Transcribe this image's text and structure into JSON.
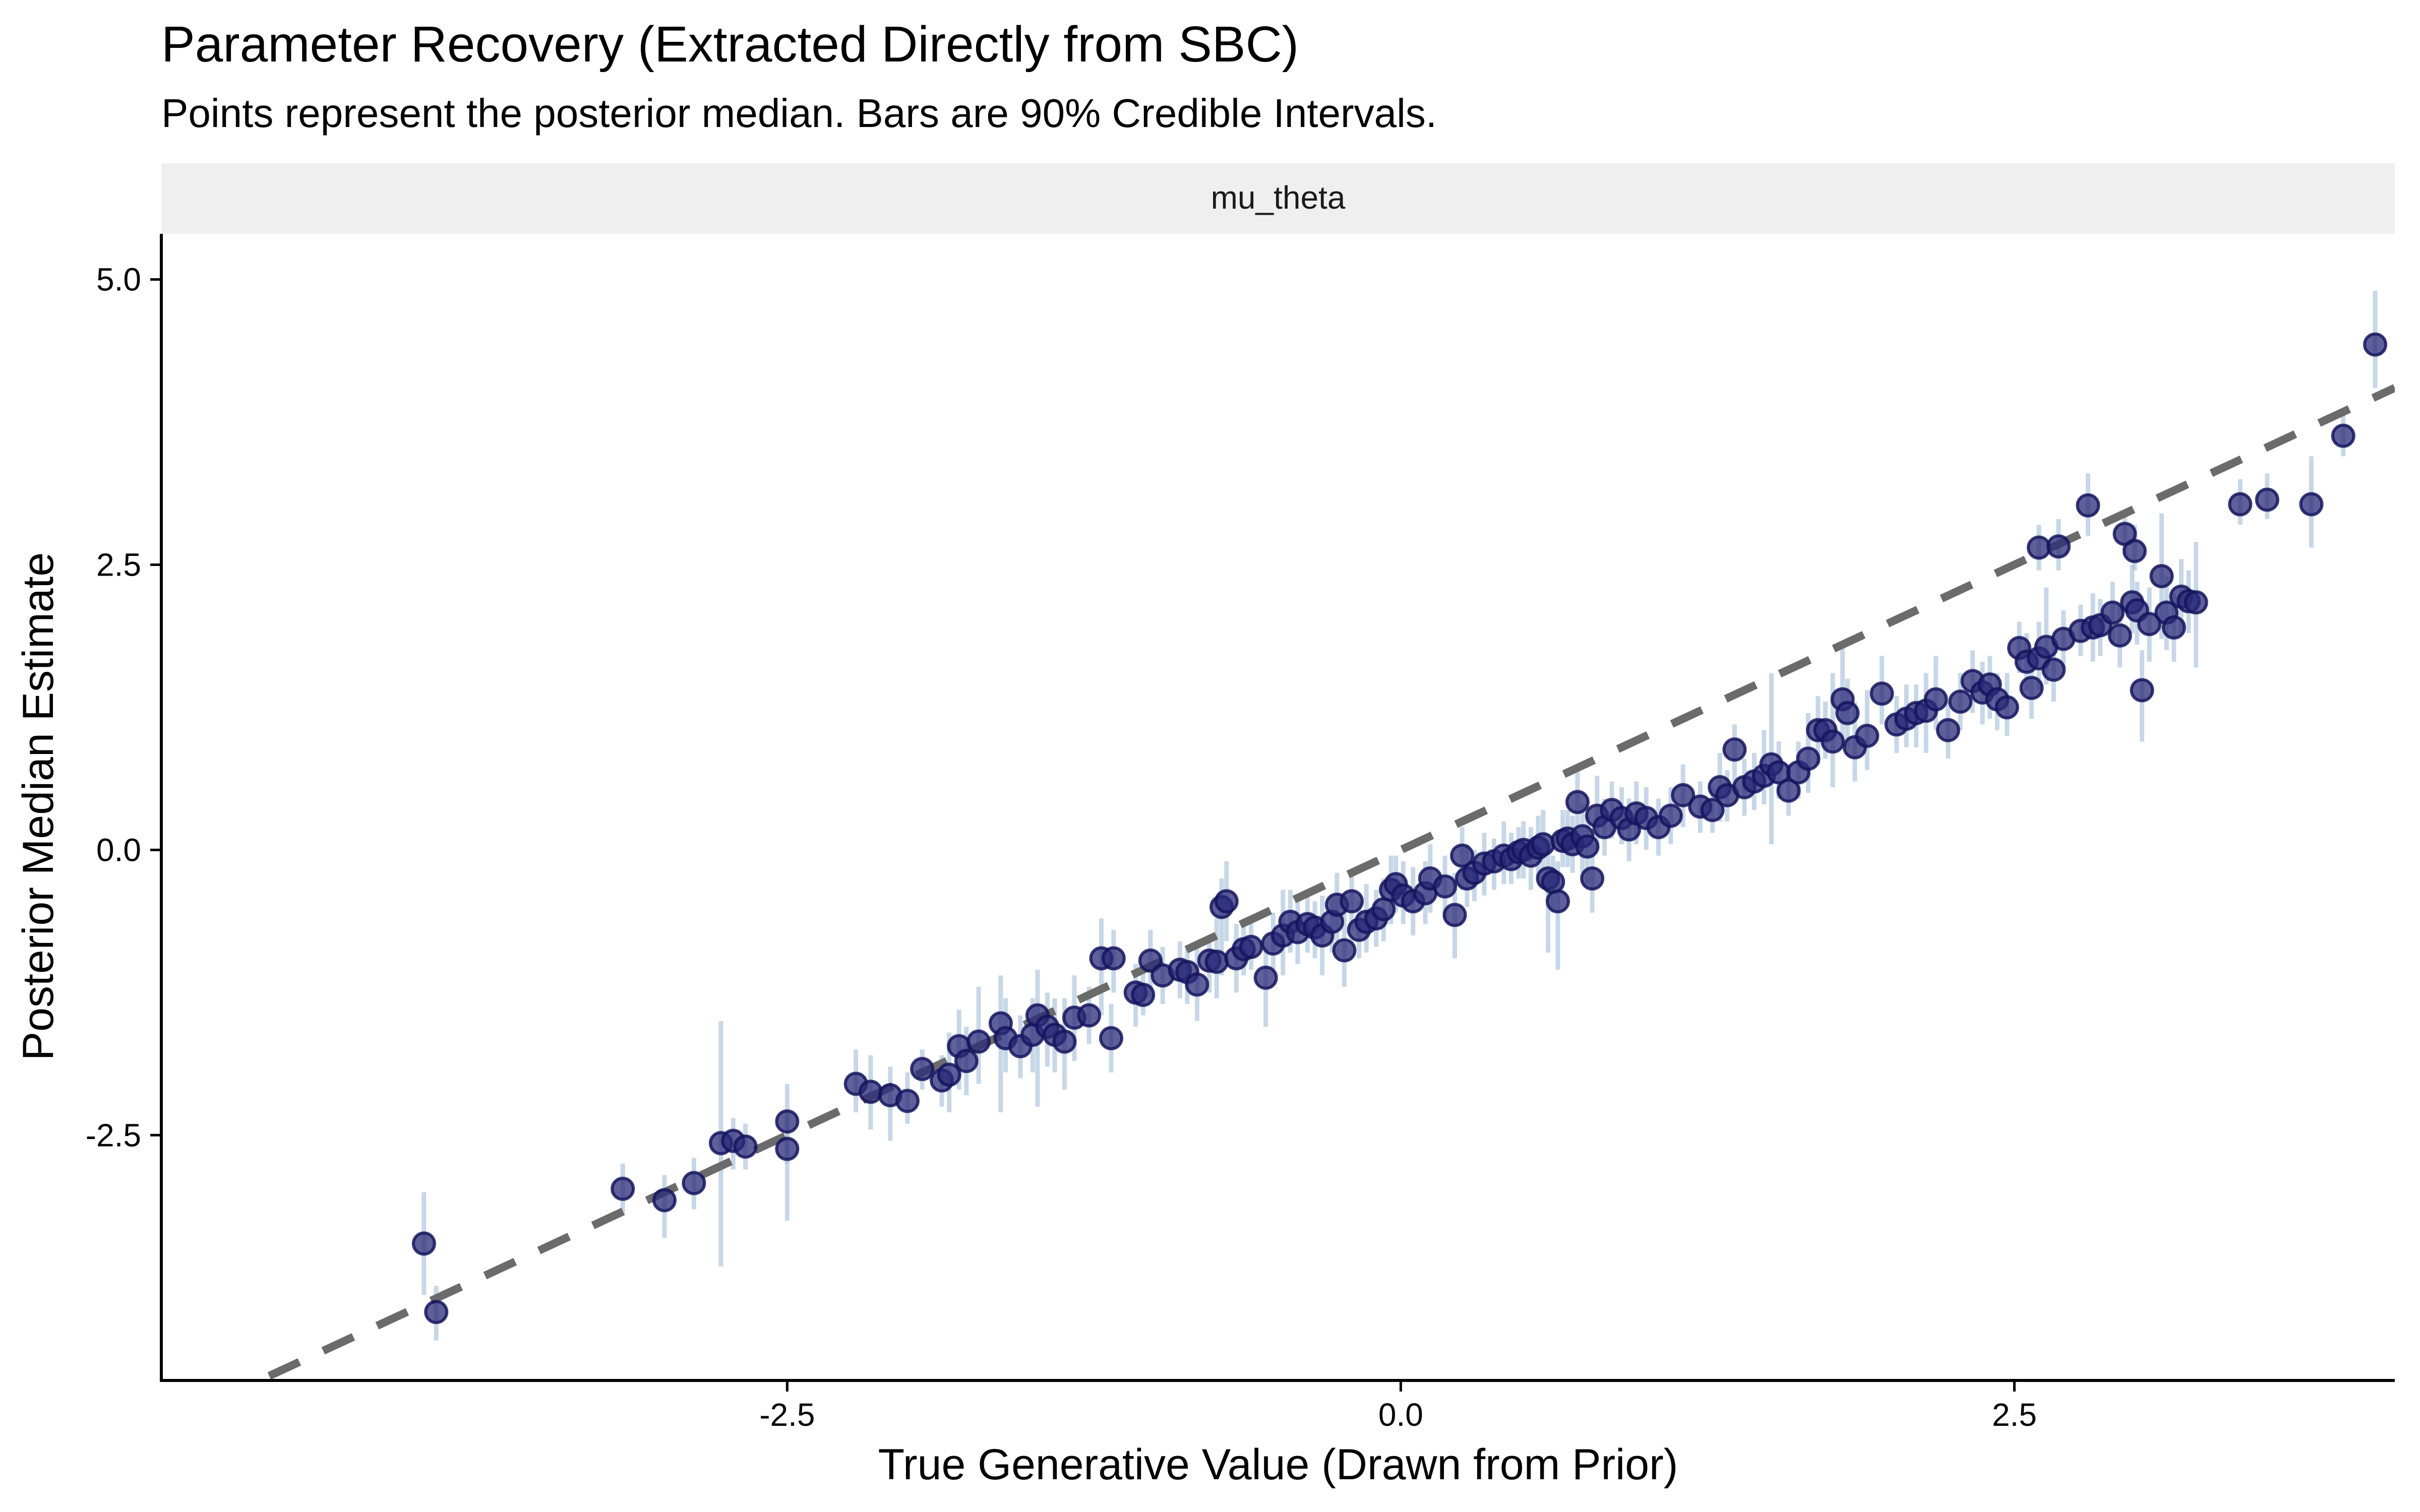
{
  "chart_data": {
    "type": "scatter",
    "title": "Parameter Recovery (Extracted Directly from SBC)",
    "subtitle": "Points represent the posterior median. Bars are 90% Credible Intervals.",
    "facet_label": "mu_theta",
    "xlabel": "True Generative Value (Drawn from Prior)",
    "ylabel": "Posterior Median Estimate",
    "xlim": [
      -5.05,
      4.05
    ],
    "ylim": [
      -4.65,
      5.4
    ],
    "x_ticks": [
      -2.5,
      0.0,
      2.5
    ],
    "x_tick_labels": [
      "-2.5",
      "0.0",
      "2.5"
    ],
    "y_ticks": [
      -2.5,
      0.0,
      2.5,
      5.0
    ],
    "y_tick_labels": [
      "-2.5",
      "0.0",
      "2.5",
      "5.0"
    ],
    "grid": false,
    "reference_line": {
      "type": "identity",
      "slope": 1,
      "intercept": 0,
      "style": "dashed"
    },
    "colors": {
      "point_fill": "#2a2a78",
      "point_stroke": "#15155e",
      "interval": "#a9c2da",
      "reference_line": "#6b6b6b",
      "strip_bg": "#efefef"
    },
    "series": [
      {
        "name": "mu_theta",
        "points": [
          [
            -3.98,
            -3.45,
            -3.0,
            -3.9
          ],
          [
            -3.93,
            -4.05,
            -3.82,
            -4.3
          ],
          [
            -3.17,
            -2.97,
            -2.75,
            -3.2
          ],
          [
            -3.0,
            -3.07,
            -2.85,
            -3.4
          ],
          [
            -2.88,
            -2.92,
            -2.7,
            -3.15
          ],
          [
            -2.77,
            -2.57,
            -1.5,
            -3.65
          ],
          [
            -2.72,
            -2.55,
            -2.35,
            -2.8
          ],
          [
            -2.67,
            -2.6,
            -2.4,
            -2.8
          ],
          [
            -2.5,
            -2.38,
            -2.05,
            -2.75
          ],
          [
            -2.5,
            -2.62,
            -2.3,
            -3.25
          ],
          [
            -2.22,
            -2.05,
            -1.75,
            -2.3
          ],
          [
            -2.16,
            -2.12,
            -1.8,
            -2.45
          ],
          [
            -2.08,
            -2.15,
            -1.9,
            -2.55
          ],
          [
            -2.01,
            -2.2,
            -1.95,
            -2.4
          ],
          [
            -1.95,
            -1.92,
            -1.75,
            -2.1
          ],
          [
            -1.87,
            -2.02,
            -1.8,
            -2.25
          ],
          [
            -1.84,
            -1.97,
            -1.6,
            -2.3
          ],
          [
            -1.8,
            -1.72,
            -1.4,
            -2.1
          ],
          [
            -1.77,
            -1.85,
            -1.55,
            -2.15
          ],
          [
            -1.72,
            -1.68,
            -1.2,
            -2.05
          ],
          [
            -1.63,
            -1.52,
            -1.1,
            -2.3
          ],
          [
            -1.61,
            -1.65,
            -1.3,
            -1.95
          ],
          [
            -1.55,
            -1.72,
            -1.45,
            -2.0
          ],
          [
            -1.5,
            -1.62,
            -1.3,
            -1.95
          ],
          [
            -1.48,
            -1.45,
            -1.05,
            -2.25
          ],
          [
            -1.44,
            -1.55,
            -1.25,
            -1.9
          ],
          [
            -1.41,
            -1.62,
            -1.3,
            -1.95
          ],
          [
            -1.37,
            -1.68,
            -1.3,
            -2.1
          ],
          [
            -1.33,
            -1.47,
            -1.1,
            -1.85
          ],
          [
            -1.27,
            -1.45,
            -1.2,
            -1.7
          ],
          [
            -1.22,
            -0.95,
            -0.6,
            -1.45
          ],
          [
            -1.18,
            -1.65,
            -1.35,
            -1.95
          ],
          [
            -1.17,
            -0.95,
            -0.7,
            -1.25
          ],
          [
            -1.08,
            -1.25,
            -1.0,
            -1.55
          ],
          [
            -1.05,
            -1.27,
            -1.05,
            -1.45
          ],
          [
            -1.02,
            -0.97,
            -0.7,
            -1.3
          ],
          [
            -0.97,
            -1.1,
            -0.85,
            -1.35
          ],
          [
            -0.9,
            -1.05,
            -0.8,
            -1.3
          ],
          [
            -0.87,
            -1.07,
            -0.85,
            -1.35
          ],
          [
            -0.83,
            -1.18,
            -0.85,
            -1.5
          ],
          [
            -0.78,
            -0.97,
            -0.75,
            -1.25
          ],
          [
            -0.75,
            -0.98,
            -0.6,
            -1.3
          ],
          [
            -0.73,
            -0.5,
            -0.25,
            -1.1
          ],
          [
            -0.71,
            -0.45,
            -0.1,
            -0.8
          ],
          [
            -0.67,
            -0.95,
            -0.65,
            -1.25
          ],
          [
            -0.64,
            -0.87,
            -0.65,
            -1.1
          ],
          [
            -0.61,
            -0.85,
            -0.6,
            -1.05
          ],
          [
            -0.55,
            -1.12,
            -0.85,
            -1.55
          ],
          [
            -0.52,
            -0.82,
            -0.55,
            -1.05
          ],
          [
            -0.48,
            -0.75,
            -0.35,
            -1.1
          ],
          [
            -0.45,
            -0.63,
            -0.35,
            -0.9
          ],
          [
            -0.42,
            -0.72,
            -0.45,
            -1.0
          ],
          [
            -0.38,
            -0.65,
            -0.4,
            -0.9
          ],
          [
            -0.35,
            -0.68,
            -0.45,
            -0.95
          ],
          [
            -0.32,
            -0.75,
            -0.4,
            -1.1
          ],
          [
            -0.28,
            -0.63,
            -0.4,
            -0.9
          ],
          [
            -0.26,
            -0.48,
            -0.2,
            -0.8
          ],
          [
            -0.23,
            -0.88,
            -0.55,
            -1.2
          ],
          [
            -0.2,
            -0.45,
            -0.2,
            -0.7
          ],
          [
            -0.17,
            -0.7,
            -0.45,
            -0.95
          ],
          [
            -0.14,
            -0.63,
            -0.3,
            -0.9
          ],
          [
            -0.1,
            -0.6,
            -0.35,
            -0.85
          ],
          [
            -0.07,
            -0.52,
            -0.25,
            -0.8
          ],
          [
            -0.04,
            -0.35,
            -0.05,
            -0.65
          ],
          [
            -0.02,
            -0.3,
            -0.05,
            -0.55
          ],
          [
            0.01,
            -0.4,
            -0.1,
            -0.65
          ],
          [
            0.05,
            -0.45,
            -0.15,
            -0.75
          ],
          [
            0.1,
            -0.38,
            -0.1,
            -0.65
          ],
          [
            0.12,
            -0.25,
            0.05,
            -0.55
          ],
          [
            0.18,
            -0.32,
            -0.05,
            -0.6
          ],
          [
            0.22,
            -0.57,
            -0.2,
            -0.95
          ],
          [
            0.25,
            -0.05,
            0.2,
            -0.35
          ],
          [
            0.27,
            -0.25,
            0.05,
            -0.5
          ],
          [
            0.3,
            -0.2,
            0.0,
            -0.45
          ],
          [
            0.34,
            -0.12,
            0.15,
            -0.4
          ],
          [
            0.38,
            -0.1,
            0.1,
            -0.35
          ],
          [
            0.42,
            -0.05,
            0.25,
            -0.3
          ],
          [
            0.45,
            -0.08,
            0.15,
            -0.3
          ],
          [
            0.48,
            -0.02,
            0.2,
            -0.25
          ],
          [
            0.5,
            0.0,
            0.25,
            -0.25
          ],
          [
            0.53,
            -0.05,
            0.2,
            -0.35
          ],
          [
            0.56,
            0.02,
            0.3,
            -0.25
          ],
          [
            0.58,
            0.05,
            0.35,
            -0.2
          ],
          [
            0.6,
            -0.25,
            0.05,
            -0.9
          ],
          [
            0.62,
            -0.28,
            -0.05,
            -0.55
          ],
          [
            0.64,
            -0.45,
            -0.1,
            -1.05
          ],
          [
            0.66,
            0.08,
            0.35,
            -0.15
          ],
          [
            0.68,
            0.1,
            0.35,
            -0.15
          ],
          [
            0.7,
            0.05,
            0.3,
            -0.2
          ],
          [
            0.72,
            0.42,
            0.7,
            0.1
          ],
          [
            0.74,
            0.12,
            0.4,
            -0.2
          ],
          [
            0.76,
            0.03,
            0.3,
            -0.3
          ],
          [
            0.78,
            -0.25,
            0.05,
            -0.55
          ],
          [
            0.8,
            0.3,
            0.65,
            0.0
          ],
          [
            0.83,
            0.2,
            0.45,
            -0.05
          ],
          [
            0.86,
            0.35,
            0.6,
            0.1
          ],
          [
            0.9,
            0.28,
            0.55,
            0.05
          ],
          [
            0.93,
            0.18,
            0.45,
            -0.1
          ],
          [
            0.96,
            0.32,
            0.6,
            0.05
          ],
          [
            1.0,
            0.28,
            0.55,
            0.0
          ],
          [
            1.05,
            0.2,
            0.45,
            -0.05
          ],
          [
            1.1,
            0.3,
            0.55,
            0.05
          ],
          [
            1.15,
            0.48,
            0.75,
            0.2
          ],
          [
            1.22,
            0.38,
            0.6,
            0.15
          ],
          [
            1.27,
            0.35,
            0.55,
            0.15
          ],
          [
            1.3,
            0.55,
            0.85,
            0.25
          ],
          [
            1.33,
            0.48,
            0.7,
            0.25
          ],
          [
            1.36,
            0.88,
            1.1,
            0.55
          ],
          [
            1.4,
            0.55,
            0.8,
            0.3
          ],
          [
            1.44,
            0.6,
            0.85,
            0.35
          ],
          [
            1.48,
            0.65,
            1.05,
            0.4
          ],
          [
            1.51,
            0.75,
            1.55,
            0.05
          ],
          [
            1.54,
            0.68,
            0.95,
            0.45
          ],
          [
            1.58,
            0.52,
            0.75,
            0.3
          ],
          [
            1.62,
            0.68,
            0.95,
            0.45
          ],
          [
            1.66,
            0.8,
            1.2,
            0.5
          ],
          [
            1.7,
            1.05,
            1.35,
            0.75
          ],
          [
            1.73,
            1.05,
            1.3,
            0.8
          ],
          [
            1.76,
            0.95,
            1.55,
            0.55
          ],
          [
            1.8,
            1.32,
            1.8,
            0.95
          ],
          [
            1.82,
            1.2,
            1.5,
            0.9
          ],
          [
            1.85,
            0.9,
            1.3,
            0.6
          ],
          [
            1.9,
            1.0,
            1.4,
            0.7
          ],
          [
            1.96,
            1.37,
            1.7,
            1.1
          ],
          [
            2.02,
            1.1,
            1.35,
            0.85
          ],
          [
            2.06,
            1.15,
            1.45,
            0.9
          ],
          [
            2.1,
            1.2,
            1.45,
            0.9
          ],
          [
            2.14,
            1.22,
            1.55,
            0.85
          ],
          [
            2.18,
            1.32,
            1.7,
            1.05
          ],
          [
            2.23,
            1.05,
            1.3,
            0.8
          ],
          [
            2.28,
            1.3,
            1.55,
            1.05
          ],
          [
            2.33,
            1.48,
            1.75,
            1.2
          ],
          [
            2.37,
            1.38,
            1.65,
            1.1
          ],
          [
            2.4,
            1.45,
            1.7,
            1.15
          ],
          [
            2.43,
            1.32,
            1.55,
            1.05
          ],
          [
            2.47,
            1.25,
            1.55,
            1.0
          ],
          [
            2.52,
            1.77,
            2.0,
            1.55
          ],
          [
            2.55,
            1.65,
            1.9,
            1.4
          ],
          [
            2.57,
            1.42,
            1.7,
            1.15
          ],
          [
            2.6,
            1.68,
            2.0,
            1.4
          ],
          [
            2.63,
            1.78,
            2.3,
            1.45
          ],
          [
            2.66,
            1.58,
            1.85,
            1.3
          ],
          [
            2.7,
            1.85,
            2.1,
            1.6
          ],
          [
            2.77,
            1.92,
            2.15,
            1.7
          ],
          [
            2.82,
            1.95,
            2.25,
            1.65
          ],
          [
            2.85,
            1.97,
            2.2,
            1.7
          ],
          [
            2.9,
            2.08,
            2.35,
            1.8
          ],
          [
            2.93,
            1.88,
            2.15,
            1.6
          ],
          [
            2.98,
            2.17,
            2.5,
            1.9
          ],
          [
            3.0,
            2.1,
            2.35,
            1.8
          ],
          [
            3.02,
            1.4,
            1.75,
            0.95
          ],
          [
            3.05,
            1.98,
            2.3,
            1.65
          ],
          [
            3.1,
            2.4,
            2.95,
            1.85
          ],
          [
            3.12,
            2.08,
            2.4,
            1.75
          ],
          [
            3.15,
            1.95,
            2.25,
            1.65
          ],
          [
            3.18,
            2.22,
            2.55,
            1.9
          ],
          [
            3.21,
            2.18,
            2.45,
            1.9
          ],
          [
            3.24,
            2.17,
            2.7,
            1.6
          ],
          [
            2.6,
            2.65,
            2.85,
            2.45
          ],
          [
            2.68,
            2.66,
            2.9,
            2.45
          ],
          [
            2.8,
            3.02,
            3.3,
            2.75
          ],
          [
            2.95,
            2.77,
            2.95,
            2.6
          ],
          [
            2.99,
            2.62,
            2.85,
            2.45
          ],
          [
            3.42,
            3.03,
            3.25,
            2.85
          ],
          [
            3.53,
            3.07,
            3.3,
            2.9
          ],
          [
            3.71,
            3.03,
            3.45,
            2.65
          ],
          [
            3.84,
            3.63,
            3.85,
            3.45
          ],
          [
            3.97,
            4.43,
            4.9,
            4.05
          ]
        ]
      }
    ]
  }
}
